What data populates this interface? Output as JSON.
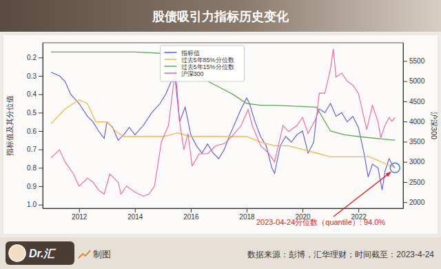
{
  "chart_data": {
    "type": "line",
    "title": "股债吸引力指标历史变化",
    "ylabel": "指标值及其分位值",
    "y2label": "沪深300",
    "xlim": [
      2010.7,
      2023.6
    ],
    "xticks": [
      2012,
      2014,
      2016,
      2018,
      2020,
      2022
    ],
    "ylim": [
      1.02,
      0.12
    ],
    "yticks": [
      0.2,
      0.3,
      0.4,
      0.5,
      0.6,
      0.7,
      0.8,
      0.9,
      {
        "value": 1,
        "label": "1.0"
      }
    ],
    "y2lim": [
      1850,
      5950
    ],
    "y2ticks": [
      2000,
      2500,
      3000,
      3500,
      4000,
      4500,
      5000,
      5500
    ],
    "grid": false,
    "legend": "top",
    "series": [
      {
        "name": "指标值",
        "color": "#5b57d9",
        "axis": "y",
        "x": [
          2011.0,
          2011.3,
          2011.5,
          2011.7,
          2012.0,
          2012.3,
          2012.5,
          2012.7,
          2012.9,
          2013.0,
          2013.2,
          2013.4,
          2013.6,
          2013.8,
          2014.0,
          2014.3,
          2014.6,
          2014.9,
          2015.1,
          2015.3,
          2015.45,
          2015.6,
          2015.8,
          2016.0,
          2016.2,
          2016.4,
          2016.6,
          2016.8,
          2017.0,
          2017.2,
          2017.4,
          2017.6,
          2017.8,
          2018.0,
          2018.1,
          2018.3,
          2018.5,
          2018.7,
          2018.9,
          2019.0,
          2019.2,
          2019.4,
          2019.6,
          2019.8,
          2020.0,
          2020.2,
          2020.4,
          2020.5,
          2020.6,
          2020.8,
          2021.0,
          2021.2,
          2021.4,
          2021.6,
          2021.8,
          2022.0,
          2022.2,
          2022.35,
          2022.5,
          2022.7,
          2022.85,
          2022.95,
          2023.1,
          2023.2,
          2023.31
        ],
        "values": [
          0.28,
          0.3,
          0.33,
          0.4,
          0.45,
          0.52,
          0.55,
          0.6,
          0.64,
          0.55,
          0.58,
          0.65,
          0.62,
          0.58,
          0.62,
          0.57,
          0.5,
          0.45,
          0.4,
          0.33,
          0.33,
          0.55,
          0.47,
          0.62,
          0.68,
          0.72,
          0.67,
          0.72,
          0.75,
          0.7,
          0.62,
          0.55,
          0.48,
          0.42,
          0.45,
          0.55,
          0.63,
          0.68,
          0.8,
          0.83,
          0.68,
          0.63,
          0.66,
          0.62,
          0.6,
          0.72,
          0.66,
          0.52,
          0.48,
          0.5,
          0.45,
          0.52,
          0.5,
          0.55,
          0.52,
          0.58,
          0.72,
          0.85,
          0.78,
          0.8,
          0.92,
          0.82,
          0.75,
          0.78,
          0.8
        ]
      },
      {
        "name": "过去5年85%分位数",
        "color": "#f5b545",
        "axis": "y",
        "x": [
          2011.0,
          2011.5,
          2012.0,
          2012.3,
          2012.6,
          2013.0,
          2013.3,
          2013.6,
          2014.0,
          2015.0,
          2015.3,
          2015.5,
          2016.0,
          2017.0,
          2018.0,
          2018.5,
          2019.0,
          2019.5,
          2020.0,
          2020.5,
          2021.0,
          2022.0,
          2022.4,
          2022.7,
          2023.0,
          2023.31
        ],
        "values": [
          0.56,
          0.48,
          0.43,
          0.45,
          0.55,
          0.55,
          0.6,
          0.63,
          0.63,
          0.63,
          0.62,
          0.61,
          0.63,
          0.63,
          0.63,
          0.66,
          0.68,
          0.68,
          0.7,
          0.72,
          0.74,
          0.74,
          0.74,
          0.76,
          0.78,
          0.8
        ]
      },
      {
        "name": "过去5年15%分位数",
        "color": "#5aaa55",
        "axis": "y",
        "x": [
          2011.0,
          2014.0,
          2015.3,
          2015.5,
          2015.7,
          2016.0,
          2016.5,
          2017.0,
          2017.5,
          2018.0,
          2018.5,
          2019.0,
          2020.5,
          2021.0,
          2021.5,
          2022.0,
          2023.31
        ],
        "values": [
          0.17,
          0.17,
          0.18,
          0.23,
          0.26,
          0.28,
          0.32,
          0.36,
          0.4,
          0.45,
          0.46,
          0.46,
          0.47,
          0.6,
          0.62,
          0.63,
          0.65
        ]
      },
      {
        "name": "沪深300",
        "color": "#f05fa0",
        "axis": "y2",
        "x": [
          2011.0,
          2011.3,
          2011.5,
          2011.8,
          2012.0,
          2012.3,
          2012.5,
          2012.7,
          2012.9,
          2013.1,
          2013.4,
          2013.5,
          2013.7,
          2014.0,
          2014.3,
          2014.5,
          2014.7,
          2014.95,
          2015.2,
          2015.45,
          2015.6,
          2015.75,
          2015.9,
          2016.05,
          2016.3,
          2016.6,
          2016.9,
          2017.2,
          2017.5,
          2017.8,
          2018.05,
          2018.2,
          2018.5,
          2018.8,
          2019.0,
          2019.3,
          2019.5,
          2019.8,
          2020.0,
          2020.2,
          2020.5,
          2020.6,
          2020.8,
          2021.0,
          2021.1,
          2021.2,
          2021.4,
          2021.6,
          2021.8,
          2022.0,
          2022.2,
          2022.3,
          2022.5,
          2022.7,
          2022.8,
          2022.95,
          2023.1,
          2023.2,
          2023.31
        ],
        "values": [
          3100,
          3300,
          3000,
          2700,
          2400,
          2600,
          2500,
          2300,
          2200,
          2700,
          2500,
          2200,
          2400,
          2250,
          2150,
          2200,
          2400,
          3500,
          3900,
          5300,
          4000,
          3300,
          3700,
          2900,
          3200,
          3200,
          3400,
          3450,
          3650,
          3900,
          4300,
          3900,
          3400,
          3200,
          3000,
          3900,
          3750,
          3900,
          4100,
          3700,
          4100,
          4700,
          4700,
          5300,
          5800,
          5100,
          5200,
          5000,
          4900,
          4700,
          4100,
          3800,
          4400,
          4000,
          3600,
          3900,
          4100,
          4000,
          4100
        ]
      }
    ],
    "annotations": [
      {
        "text": "2023-04-24分位数（quantile）: 94.0%",
        "x": 2023.31,
        "y": 0.8
      }
    ]
  },
  "footer": {
    "logo": "Dr.汇",
    "logo_caption": "制图",
    "source": "数据来源：彭博，汇华理财；时间截至：2023-4-24"
  }
}
